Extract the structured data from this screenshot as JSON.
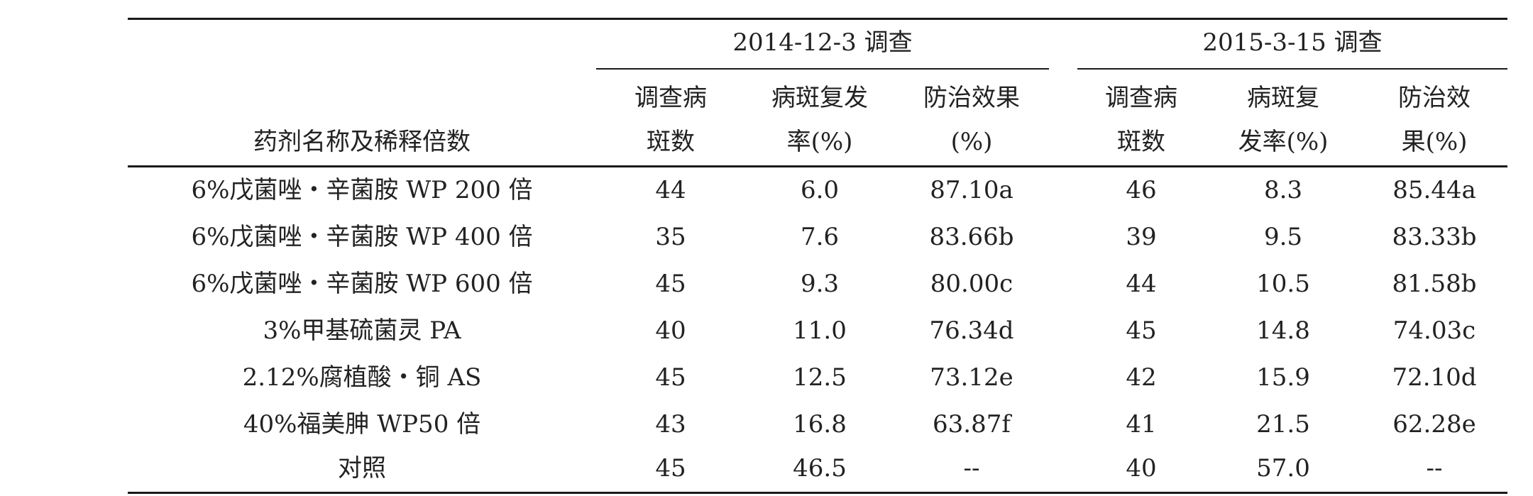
{
  "table": {
    "group_a": "2014-12-3 调查",
    "group_b": "2015-3-15 调查",
    "name_header": "药剂名称及稀释倍数",
    "headers": [
      {
        "l1": "调查病",
        "l2": "斑数"
      },
      {
        "l1": "病斑复发",
        "l2": "率(%)"
      },
      {
        "l1": "防治效果",
        "l2": "(%)"
      },
      {
        "l1": "调查病",
        "l2": "斑数"
      },
      {
        "l1": "病斑复",
        "l2": "发率(%)"
      },
      {
        "l1": "防治效",
        "l2": "果(%)"
      }
    ],
    "rows": [
      [
        "6%戊菌唑・辛菌胺 WP  200 倍",
        "44",
        "6.0",
        "87.10a",
        "46",
        "8.3",
        "85.44a"
      ],
      [
        "6%戊菌唑・辛菌胺 WP  400 倍",
        "35",
        "7.6",
        "83.66b",
        "39",
        "9.5",
        "83.33b"
      ],
      [
        "6%戊菌唑・辛菌胺 WP  600 倍",
        "45",
        "9.3",
        "80.00c",
        "44",
        "10.5",
        "81.58b"
      ],
      [
        "3%甲基硫菌灵 PA",
        "40",
        "11.0",
        "76.34d",
        "45",
        "14.8",
        "74.03c"
      ],
      [
        "2.12%腐植酸・铜 AS",
        "45",
        "12.5",
        "73.12e",
        "42",
        "15.9",
        "72.10d"
      ],
      [
        "40%福美胂 WP50 倍",
        "43",
        "16.8",
        "63.87f",
        "41",
        "21.5",
        "62.28e"
      ],
      [
        "对照",
        "45",
        "46.5",
        "--",
        "40",
        "57.0",
        "--"
      ]
    ]
  }
}
